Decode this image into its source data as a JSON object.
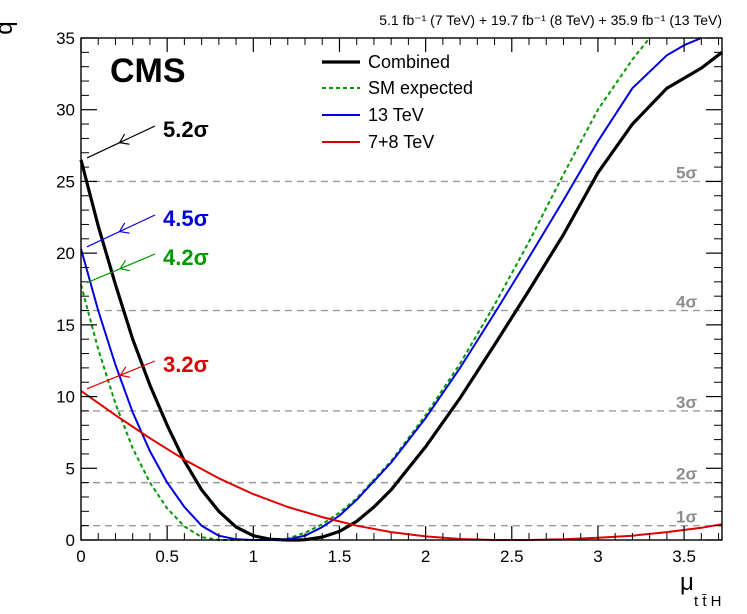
{
  "lumi_text": "5.1 fb⁻¹ (7 TeV) + 19.7 fb⁻¹ (8 TeV) + 35.9 fb⁻¹ (13 TeV)",
  "chart_data": {
    "type": "line",
    "experiment_label": "CMS",
    "ylabel": "q",
    "xlabel": "μ",
    "xlabel_sub": "t t̄ H",
    "xlim": [
      0,
      3.72
    ],
    "ylim": [
      0,
      35
    ],
    "x_ticks": [
      0,
      0.5,
      1,
      1.5,
      2,
      2.5,
      3,
      3.5
    ],
    "x_tick_labels": [
      "0",
      "0.5",
      "1",
      "1.5",
      "2",
      "2.5",
      "3",
      "3.5"
    ],
    "y_ticks": [
      0,
      5,
      10,
      15,
      20,
      25,
      30,
      35
    ],
    "y_tick_labels": [
      "0",
      "5",
      "10",
      "15",
      "20",
      "25",
      "30",
      "35"
    ],
    "reference_lines": [
      {
        "value": 1,
        "label": "1σ"
      },
      {
        "value": 4,
        "label": "2σ"
      },
      {
        "value": 9,
        "label": "3σ"
      },
      {
        "value": 16,
        "label": "4σ"
      },
      {
        "value": 25,
        "label": "5σ"
      }
    ],
    "legend_position": "top-center",
    "series": [
      {
        "name": "Combined",
        "color": "#000000",
        "style": "solid",
        "x": [
          0,
          0.1,
          0.2,
          0.3,
          0.4,
          0.5,
          0.6,
          0.7,
          0.8,
          0.9,
          1.0,
          1.1,
          1.2,
          1.26,
          1.3,
          1.4,
          1.5,
          1.6,
          1.7,
          1.8,
          2.0,
          2.2,
          2.4,
          2.6,
          2.8,
          3.0,
          3.2,
          3.4,
          3.6,
          3.72
        ],
        "y": [
          26.5,
          21.9,
          17.8,
          14.0,
          10.8,
          8.0,
          5.5,
          3.5,
          2.0,
          0.9,
          0.3,
          0.05,
          0.0,
          0.0,
          0.02,
          0.2,
          0.6,
          1.3,
          2.3,
          3.5,
          6.5,
          9.9,
          13.6,
          17.4,
          21.3,
          25.6,
          29.0,
          31.5,
          32.9,
          34.0
        ]
      },
      {
        "name": "SM expected",
        "color": "#009900",
        "style": "dashed",
        "x": [
          0,
          0.1,
          0.2,
          0.3,
          0.4,
          0.5,
          0.6,
          0.7,
          0.8,
          0.9,
          1.0,
          1.1,
          1.15,
          1.2,
          1.3,
          1.4,
          1.5,
          1.6,
          1.8,
          2.0,
          2.2,
          2.4,
          2.6,
          2.8,
          3.0,
          3.2,
          3.3
        ],
        "y": [
          17.8,
          13.3,
          9.5,
          6.4,
          4.0,
          2.2,
          0.95,
          0.2,
          0.0,
          0.0,
          0.0,
          0.0,
          0.0,
          0.1,
          0.5,
          1.1,
          1.9,
          2.9,
          5.5,
          8.7,
          12.3,
          16.4,
          20.8,
          25.5,
          30.0,
          33.5,
          35.0
        ]
      },
      {
        "name": "13 TeV",
        "color": "#0000dd",
        "style": "solid",
        "x": [
          0,
          0.1,
          0.2,
          0.3,
          0.4,
          0.5,
          0.6,
          0.7,
          0.8,
          0.9,
          1.0,
          1.1,
          1.15,
          1.2,
          1.3,
          1.4,
          1.5,
          1.6,
          1.8,
          2.0,
          2.2,
          2.4,
          2.6,
          2.8,
          3.0,
          3.2,
          3.4,
          3.5,
          3.6
        ],
        "y": [
          20.3,
          16.0,
          12.2,
          8.9,
          6.2,
          4.0,
          2.3,
          1.0,
          0.3,
          0.05,
          0.0,
          0.0,
          0.0,
          0.05,
          0.3,
          0.9,
          1.7,
          2.8,
          5.4,
          8.5,
          12.0,
          15.8,
          19.7,
          23.7,
          27.8,
          31.5,
          33.8,
          34.5,
          35.0
        ]
      },
      {
        "name": "7+8 TeV",
        "color": "#dd0000",
        "style": "solid",
        "x": [
          0,
          0.2,
          0.4,
          0.6,
          0.8,
          1.0,
          1.2,
          1.4,
          1.6,
          1.8,
          2.0,
          2.2,
          2.4,
          2.6,
          2.8,
          3.0,
          3.2,
          3.4,
          3.6,
          3.72
        ],
        "y": [
          10.4,
          8.7,
          7.1,
          5.6,
          4.3,
          3.2,
          2.3,
          1.6,
          1.0,
          0.55,
          0.25,
          0.07,
          0.0,
          0.0,
          0.05,
          0.15,
          0.3,
          0.55,
          0.85,
          1.1
        ]
      }
    ],
    "significance_annotations": [
      {
        "series": "Combined",
        "label": "5.2σ",
        "color": "#000000",
        "y_at_zero": 26.5
      },
      {
        "series": "13 TeV",
        "label": "4.5σ",
        "color": "#0000dd",
        "y_at_zero": 20.3
      },
      {
        "series": "SM expected",
        "label": "4.2σ",
        "color": "#009900",
        "y_at_zero": 17.8
      },
      {
        "series": "7+8 TeV",
        "label": "3.2σ",
        "color": "#dd0000",
        "y_at_zero": 10.4
      }
    ]
  }
}
